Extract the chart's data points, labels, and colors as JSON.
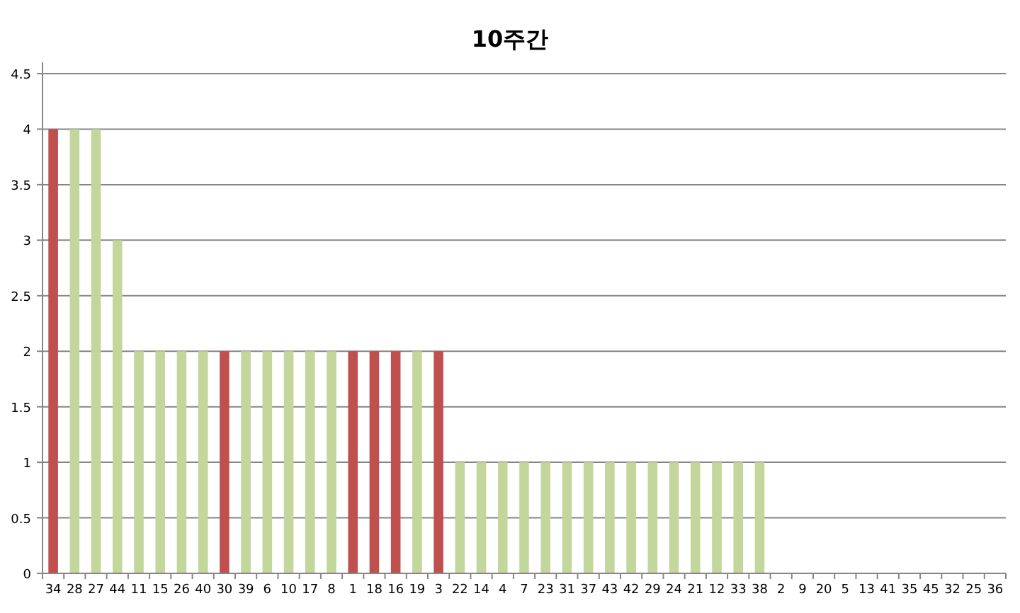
{
  "chart_data": {
    "type": "bar",
    "title": "10주간",
    "categories": [
      "34",
      "28",
      "27",
      "44",
      "11",
      "15",
      "26",
      "40",
      "30",
      "39",
      "6",
      "10",
      "17",
      "8",
      "1",
      "18",
      "16",
      "19",
      "3",
      "22",
      "14",
      "4",
      "7",
      "23",
      "31",
      "37",
      "43",
      "42",
      "29",
      "24",
      "21",
      "12",
      "33",
      "38",
      "2",
      "9",
      "20",
      "5",
      "13",
      "41",
      "35",
      "45",
      "32",
      "25",
      "36"
    ],
    "values": [
      4,
      4,
      4,
      3,
      2,
      2,
      2,
      2,
      2,
      2,
      2,
      2,
      2,
      2,
      2,
      2,
      2,
      2,
      2,
      1,
      1,
      1,
      1,
      1,
      1,
      1,
      1,
      1,
      1,
      1,
      1,
      1,
      1,
      1,
      0,
      0,
      0,
      0,
      0,
      0,
      0,
      0,
      0,
      0,
      0
    ],
    "colors": [
      "#c0504d",
      "#c3d69b",
      "#c3d69b",
      "#c3d69b",
      "#c3d69b",
      "#c3d69b",
      "#c3d69b",
      "#c3d69b",
      "#c0504d",
      "#c3d69b",
      "#c3d69b",
      "#c3d69b",
      "#c3d69b",
      "#c3d69b",
      "#c0504d",
      "#c0504d",
      "#c0504d",
      "#c3d69b",
      "#c0504d",
      "#c3d69b",
      "#c3d69b",
      "#c3d69b",
      "#c3d69b",
      "#c3d69b",
      "#c3d69b",
      "#c3d69b",
      "#c3d69b",
      "#c3d69b",
      "#c3d69b",
      "#c3d69b",
      "#c3d69b",
      "#c3d69b",
      "#c3d69b",
      "#c3d69b",
      "#c3d69b",
      "#c3d69b",
      "#c3d69b",
      "#c3d69b",
      "#c3d69b",
      "#c3d69b",
      "#c3d69b",
      "#c3d69b",
      "#c3d69b",
      "#c3d69b",
      "#c3d69b"
    ],
    "ylim": [
      0,
      4.5
    ],
    "yticks": [
      0,
      0.5,
      1,
      1.5,
      2,
      2.5,
      3,
      3.5,
      4,
      4.5
    ],
    "grid": "y"
  }
}
